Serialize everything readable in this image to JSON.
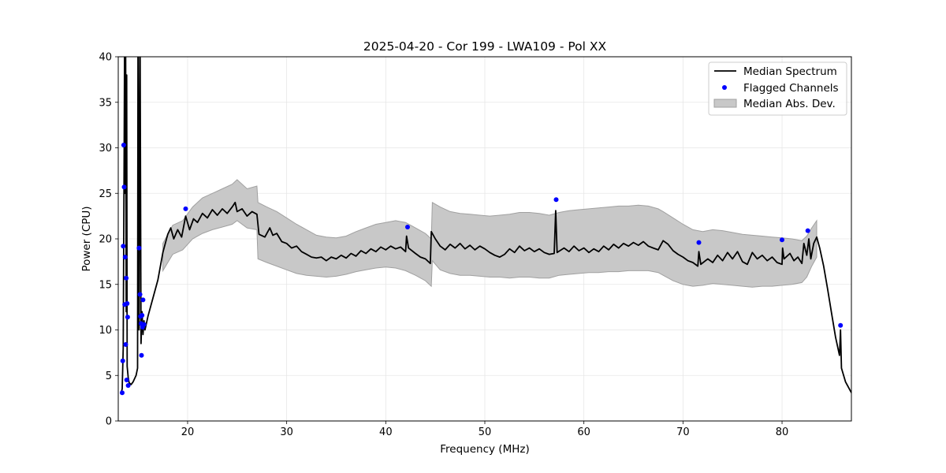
{
  "chart_data": {
    "type": "line",
    "title": "2025-04-20 - Cor 199 - LWA109 - Pol XX",
    "xlabel": "Frequency (MHz)",
    "ylabel": "Power (CPU)",
    "xlim": [
      13.0,
      87.0
    ],
    "ylim": [
      0,
      40
    ],
    "xticks": [
      20,
      30,
      40,
      50,
      60,
      70,
      80
    ],
    "yticks": [
      0,
      5,
      10,
      15,
      20,
      25,
      30,
      35,
      40
    ],
    "grid": true,
    "legend_position": "top-right",
    "colors": {
      "median": "#000000",
      "flagged": "#0000ff",
      "mad_fill": "#c8c8c8",
      "mad_edge": "#a0a0a0"
    },
    "series": [
      {
        "name": "Median Spectrum",
        "kind": "line",
        "points": [
          [
            13.3,
            3.2
          ],
          [
            13.4,
            3.5
          ],
          [
            13.5,
            8.0
          ],
          [
            13.6,
            30.0
          ],
          [
            13.65,
            45.0
          ],
          [
            13.7,
            25.0
          ],
          [
            13.75,
            40.0
          ],
          [
            13.8,
            12.0
          ],
          [
            13.85,
            38.0
          ],
          [
            13.9,
            6.0
          ],
          [
            14.0,
            4.8
          ],
          [
            14.1,
            4.2
          ],
          [
            14.3,
            4.0
          ],
          [
            14.5,
            4.3
          ],
          [
            14.8,
            5.0
          ],
          [
            14.95,
            5.8
          ],
          [
            15.0,
            45.0
          ],
          [
            15.1,
            10.0
          ],
          [
            15.2,
            45.0
          ],
          [
            15.3,
            8.5
          ],
          [
            15.4,
            12.0
          ],
          [
            15.5,
            9.5
          ],
          [
            15.6,
            11.0
          ],
          [
            15.7,
            10.0
          ],
          [
            16.0,
            11.5
          ],
          [
            16.5,
            13.5
          ],
          [
            17.0,
            15.5
          ],
          [
            17.5,
            18.5
          ],
          [
            18.0,
            20.5
          ],
          [
            18.3,
            21.2
          ],
          [
            18.6,
            20.0
          ],
          [
            19.0,
            21.0
          ],
          [
            19.4,
            20.2
          ],
          [
            19.8,
            22.5
          ],
          [
            20.2,
            21.0
          ],
          [
            20.6,
            22.2
          ],
          [
            21.0,
            21.8
          ],
          [
            21.5,
            22.8
          ],
          [
            22.0,
            22.3
          ],
          [
            22.5,
            23.2
          ],
          [
            23.0,
            22.6
          ],
          [
            23.5,
            23.3
          ],
          [
            24.0,
            22.8
          ],
          [
            24.5,
            23.5
          ],
          [
            24.8,
            24.0
          ],
          [
            25.0,
            23.0
          ],
          [
            25.5,
            23.3
          ],
          [
            26.0,
            22.5
          ],
          [
            26.5,
            23.0
          ],
          [
            27.0,
            22.7
          ],
          [
            27.2,
            20.5
          ],
          [
            27.8,
            20.2
          ],
          [
            28.3,
            21.2
          ],
          [
            28.6,
            20.4
          ],
          [
            29.0,
            20.6
          ],
          [
            29.5,
            19.7
          ],
          [
            30.0,
            19.5
          ],
          [
            30.5,
            19.0
          ],
          [
            31.0,
            19.2
          ],
          [
            31.5,
            18.6
          ],
          [
            32.0,
            18.3
          ],
          [
            32.5,
            18.0
          ],
          [
            33.0,
            17.9
          ],
          [
            33.5,
            18.0
          ],
          [
            34.0,
            17.6
          ],
          [
            34.5,
            18.0
          ],
          [
            35.0,
            17.8
          ],
          [
            35.5,
            18.2
          ],
          [
            36.0,
            17.9
          ],
          [
            36.5,
            18.4
          ],
          [
            37.0,
            18.1
          ],
          [
            37.5,
            18.7
          ],
          [
            38.0,
            18.4
          ],
          [
            38.5,
            18.9
          ],
          [
            39.0,
            18.6
          ],
          [
            39.5,
            19.1
          ],
          [
            40.0,
            18.8
          ],
          [
            40.5,
            19.2
          ],
          [
            41.0,
            18.9
          ],
          [
            41.5,
            19.1
          ],
          [
            42.0,
            18.6
          ],
          [
            42.1,
            20.3
          ],
          [
            42.3,
            19.0
          ],
          [
            43.0,
            18.4
          ],
          [
            43.5,
            18.0
          ],
          [
            44.0,
            17.8
          ],
          [
            44.5,
            17.3
          ],
          [
            44.6,
            20.8
          ],
          [
            45.0,
            20.0
          ],
          [
            45.5,
            19.2
          ],
          [
            46.0,
            18.8
          ],
          [
            46.5,
            19.4
          ],
          [
            47.0,
            19.0
          ],
          [
            47.5,
            19.5
          ],
          [
            48.0,
            18.9
          ],
          [
            48.5,
            19.3
          ],
          [
            49.0,
            18.8
          ],
          [
            49.5,
            19.2
          ],
          [
            50.0,
            18.9
          ],
          [
            50.5,
            18.5
          ],
          [
            51.0,
            18.2
          ],
          [
            51.5,
            18.0
          ],
          [
            52.0,
            18.3
          ],
          [
            52.5,
            18.9
          ],
          [
            53.0,
            18.5
          ],
          [
            53.5,
            19.2
          ],
          [
            54.0,
            18.7
          ],
          [
            54.5,
            19.0
          ],
          [
            55.0,
            18.6
          ],
          [
            55.5,
            18.9
          ],
          [
            56.0,
            18.5
          ],
          [
            56.5,
            18.3
          ],
          [
            57.0,
            18.4
          ],
          [
            57.15,
            23.1
          ],
          [
            57.3,
            18.5
          ],
          [
            58.0,
            19.0
          ],
          [
            58.5,
            18.6
          ],
          [
            59.0,
            19.2
          ],
          [
            59.5,
            18.7
          ],
          [
            60.0,
            19.0
          ],
          [
            60.5,
            18.5
          ],
          [
            61.0,
            18.9
          ],
          [
            61.5,
            18.6
          ],
          [
            62.0,
            19.2
          ],
          [
            62.5,
            18.8
          ],
          [
            63.0,
            19.4
          ],
          [
            63.5,
            19.0
          ],
          [
            64.0,
            19.5
          ],
          [
            64.5,
            19.2
          ],
          [
            65.0,
            19.6
          ],
          [
            65.5,
            19.3
          ],
          [
            66.0,
            19.7
          ],
          [
            66.5,
            19.2
          ],
          [
            67.0,
            19.0
          ],
          [
            67.5,
            18.8
          ],
          [
            68.0,
            19.8
          ],
          [
            68.5,
            19.4
          ],
          [
            69.0,
            18.7
          ],
          [
            69.5,
            18.3
          ],
          [
            70.0,
            18.0
          ],
          [
            70.5,
            17.6
          ],
          [
            71.0,
            17.4
          ],
          [
            71.5,
            17.0
          ],
          [
            71.6,
            18.6
          ],
          [
            71.8,
            17.2
          ],
          [
            72.5,
            17.8
          ],
          [
            73.0,
            17.4
          ],
          [
            73.5,
            18.2
          ],
          [
            74.0,
            17.6
          ],
          [
            74.5,
            18.5
          ],
          [
            75.0,
            17.8
          ],
          [
            75.5,
            18.6
          ],
          [
            76.0,
            17.5
          ],
          [
            76.5,
            17.2
          ],
          [
            77.0,
            18.5
          ],
          [
            77.5,
            17.8
          ],
          [
            78.0,
            18.2
          ],
          [
            78.5,
            17.6
          ],
          [
            79.0,
            18.0
          ],
          [
            79.5,
            17.4
          ],
          [
            80.0,
            17.2
          ],
          [
            80.05,
            19.0
          ],
          [
            80.2,
            17.8
          ],
          [
            80.8,
            18.4
          ],
          [
            81.2,
            17.6
          ],
          [
            81.6,
            18.0
          ],
          [
            82.0,
            17.3
          ],
          [
            82.2,
            19.5
          ],
          [
            82.5,
            18.2
          ],
          [
            82.7,
            20.0
          ],
          [
            82.9,
            17.8
          ],
          [
            83.2,
            19.5
          ],
          [
            83.5,
            20.2
          ],
          [
            83.8,
            19.0
          ],
          [
            84.2,
            17.0
          ],
          [
            84.6,
            14.5
          ],
          [
            85.0,
            11.8
          ],
          [
            85.4,
            9.2
          ],
          [
            85.8,
            7.2
          ],
          [
            85.9,
            10.0
          ],
          [
            86.0,
            5.8
          ],
          [
            86.4,
            4.3
          ],
          [
            86.8,
            3.5
          ],
          [
            87.0,
            3.1
          ]
        ]
      },
      {
        "name": "Flagged Channels",
        "kind": "scatter",
        "points": [
          [
            13.4,
            3.1
          ],
          [
            13.45,
            6.6
          ],
          [
            13.5,
            19.2
          ],
          [
            13.55,
            30.3
          ],
          [
            13.6,
            25.7
          ],
          [
            13.65,
            12.8
          ],
          [
            13.7,
            18.0
          ],
          [
            13.75,
            8.4
          ],
          [
            13.8,
            15.7
          ],
          [
            13.85,
            4.5
          ],
          [
            13.9,
            12.9
          ],
          [
            13.95,
            11.4
          ],
          [
            14.0,
            3.9
          ],
          [
            15.1,
            19.0
          ],
          [
            15.2,
            13.9
          ],
          [
            15.25,
            11.5
          ],
          [
            15.3,
            10.7
          ],
          [
            15.35,
            7.2
          ],
          [
            15.4,
            11.6
          ],
          [
            15.45,
            10.3
          ],
          [
            15.5,
            13.3
          ],
          [
            15.6,
            10.6
          ],
          [
            19.8,
            23.3
          ],
          [
            42.2,
            21.3
          ],
          [
            57.2,
            24.3
          ],
          [
            71.6,
            19.6
          ],
          [
            80.0,
            19.9
          ],
          [
            82.6,
            20.9
          ],
          [
            85.9,
            10.5
          ]
        ]
      },
      {
        "name": "Median Abs. Dev.",
        "kind": "band",
        "x": [
          17.5,
          18.5,
          19.5,
          20.5,
          21.5,
          22.5,
          23.5,
          24.5,
          25.0,
          26.0,
          27.0,
          27.1,
          28.0,
          29.0,
          30.0,
          31.0,
          32.0,
          33.0,
          34.0,
          35.0,
          36.0,
          37.0,
          38.0,
          39.0,
          40.0,
          41.0,
          42.0,
          43.0,
          44.0,
          44.6,
          44.7,
          45.5,
          46.5,
          47.5,
          48.5,
          49.5,
          50.5,
          51.5,
          52.5,
          53.5,
          54.5,
          55.5,
          56.5,
          57.5,
          58.5,
          59.5,
          60.5,
          61.5,
          62.5,
          63.5,
          64.5,
          65.5,
          66.5,
          67.5,
          68.0,
          69.0,
          70.0,
          71.0,
          72.0,
          73.0,
          74.0,
          75.0,
          76.0,
          77.0,
          78.0,
          79.0,
          80.0,
          81.0,
          82.0,
          82.5,
          83.0,
          83.5
        ],
        "upper": [
          19.5,
          21.5,
          22.0,
          23.5,
          24.5,
          25.0,
          25.5,
          26.0,
          26.5,
          25.5,
          25.8,
          24.0,
          23.5,
          23.0,
          22.3,
          21.6,
          21.0,
          20.4,
          20.2,
          20.1,
          20.3,
          20.8,
          21.2,
          21.6,
          21.8,
          22.0,
          21.8,
          21.2,
          20.6,
          20.0,
          24.0,
          23.5,
          23.0,
          22.8,
          22.7,
          22.6,
          22.5,
          22.6,
          22.7,
          22.9,
          22.9,
          22.8,
          22.6,
          22.9,
          23.1,
          23.2,
          23.3,
          23.4,
          23.5,
          23.6,
          23.6,
          23.7,
          23.6,
          23.3,
          23.0,
          22.3,
          21.6,
          21.0,
          20.8,
          21.0,
          20.9,
          20.7,
          20.5,
          20.4,
          20.3,
          20.2,
          20.1,
          20.0,
          19.8,
          20.3,
          21.2,
          22.0
        ],
        "lower": [
          16.5,
          18.3,
          18.8,
          20.0,
          20.6,
          21.0,
          21.3,
          21.6,
          22.0,
          21.2,
          21.0,
          17.8,
          17.4,
          17.0,
          16.6,
          16.2,
          16.0,
          15.9,
          15.8,
          15.9,
          16.1,
          16.4,
          16.6,
          16.8,
          16.9,
          16.8,
          16.5,
          16.0,
          15.4,
          14.8,
          17.6,
          16.6,
          16.2,
          16.0,
          16.0,
          15.9,
          15.8,
          15.8,
          15.7,
          15.8,
          15.8,
          15.7,
          15.7,
          16.0,
          16.1,
          16.2,
          16.3,
          16.3,
          16.4,
          16.4,
          16.5,
          16.5,
          16.5,
          16.3,
          16.0,
          15.4,
          15.0,
          14.8,
          14.9,
          15.1,
          15.0,
          14.9,
          14.8,
          14.7,
          14.8,
          14.8,
          14.9,
          15.0,
          15.2,
          15.8,
          17.0,
          18.0
        ]
      }
    ]
  }
}
